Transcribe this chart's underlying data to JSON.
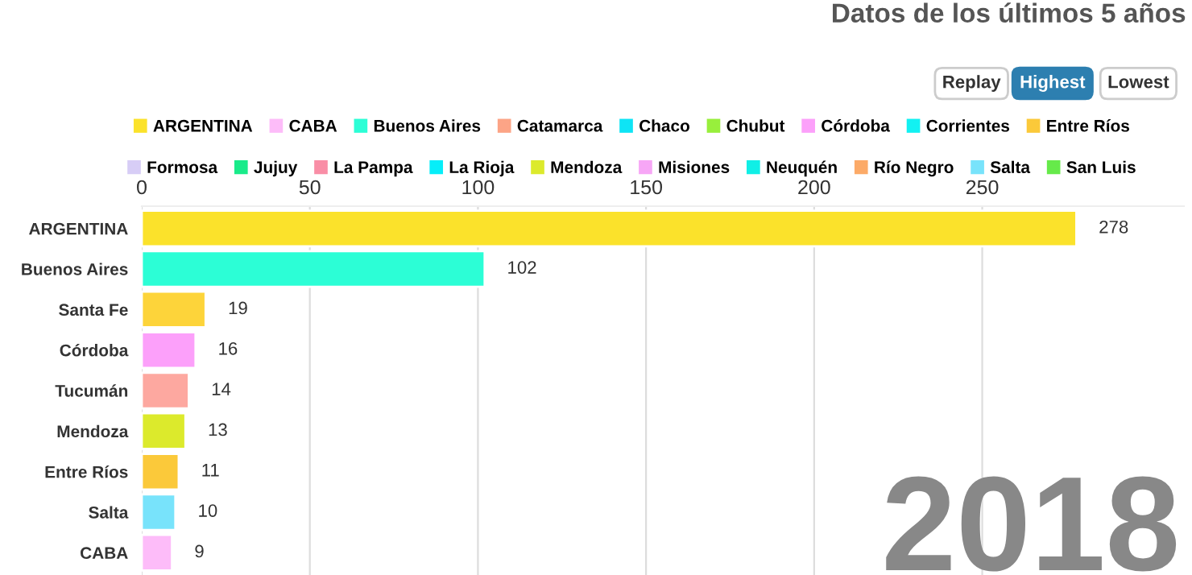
{
  "chart_data": {
    "type": "bar",
    "orientation": "horizontal",
    "title": "Datos de los últimos 5 años",
    "categories": [
      "ARGENTINA",
      "Buenos Aires",
      "Santa Fe",
      "Córdoba",
      "Tucumán",
      "Mendoza",
      "Entre Ríos",
      "Salta",
      "CABA"
    ],
    "series": [
      {
        "name": "ARGENTINA",
        "color": "#fbe22b",
        "values": [
          278,
          null,
          null,
          null,
          null,
          null,
          null,
          null,
          null
        ]
      },
      {
        "name": "CABA",
        "color": "#fdbcf9",
        "values": [
          null,
          null,
          null,
          null,
          null,
          null,
          null,
          null,
          9
        ]
      },
      {
        "name": "Buenos Aires",
        "color": "#2cfed6",
        "values": [
          null,
          102,
          null,
          null,
          null,
          null,
          null,
          null,
          null
        ]
      },
      {
        "name": "Catamarca",
        "color": "#fca486",
        "values": [
          null,
          null,
          null,
          null,
          null,
          null,
          null,
          null,
          null
        ]
      },
      {
        "name": "Chaco",
        "color": "#0ee4f5",
        "values": [
          null,
          null,
          null,
          null,
          null,
          null,
          null,
          null,
          null
        ]
      },
      {
        "name": "Chubut",
        "color": "#98ef3c",
        "values": [
          null,
          null,
          null,
          null,
          null,
          null,
          null,
          null,
          null
        ]
      },
      {
        "name": "Córdoba",
        "color": "#fca0fa",
        "values": [
          null,
          null,
          null,
          16,
          null,
          null,
          null,
          null,
          null
        ]
      },
      {
        "name": "Corrientes",
        "color": "#12f1f2",
        "values": [
          null,
          null,
          null,
          null,
          null,
          null,
          null,
          null,
          null
        ]
      },
      {
        "name": "Entre Ríos",
        "color": "#fbc93a",
        "values": [
          null,
          null,
          null,
          null,
          null,
          null,
          11,
          null,
          null
        ]
      },
      {
        "name": "Formosa",
        "color": "#d7cdf6",
        "values": [
          null,
          null,
          null,
          null,
          null,
          null,
          null,
          null,
          null
        ]
      },
      {
        "name": "Jujuy",
        "color": "#19eb8a",
        "values": [
          null,
          null,
          null,
          null,
          null,
          null,
          null,
          null,
          null
        ]
      },
      {
        "name": "La Pampa",
        "color": "#f98ea6",
        "values": [
          null,
          null,
          null,
          null,
          null,
          null,
          null,
          null,
          null
        ]
      },
      {
        "name": "La Rioja",
        "color": "#06eef9",
        "values": [
          null,
          null,
          null,
          null,
          null,
          null,
          null,
          null,
          null
        ]
      },
      {
        "name": "Mendoza",
        "color": "#dcea2c",
        "values": [
          null,
          null,
          null,
          null,
          null,
          13,
          null,
          null,
          null
        ]
      },
      {
        "name": "Misiones",
        "color": "#f7a6f6",
        "values": [
          null,
          null,
          null,
          null,
          null,
          null,
          null,
          null,
          null
        ]
      },
      {
        "name": "Neuquén",
        "color": "#10efe6",
        "values": [
          null,
          null,
          null,
          null,
          null,
          null,
          null,
          null,
          null
        ]
      },
      {
        "name": "Río Negro",
        "color": "#fcaa68",
        "values": [
          null,
          null,
          null,
          null,
          null,
          null,
          null,
          null,
          null
        ]
      },
      {
        "name": "Salta",
        "color": "#78e3fb",
        "values": [
          null,
          null,
          null,
          null,
          null,
          null,
          null,
          10,
          null
        ]
      },
      {
        "name": "San Luis",
        "color": "#66ea4a",
        "values": [
          null,
          null,
          null,
          null,
          null,
          null,
          null,
          null,
          null
        ]
      },
      {
        "color": "#fdd43a",
        "values": [
          null,
          null,
          19,
          null,
          null,
          null,
          null,
          null,
          null
        ]
      },
      {
        "color": "#fda8a0",
        "values": [
          null,
          null,
          null,
          null,
          14,
          null,
          null,
          null,
          null
        ]
      }
    ],
    "xlim": [
      0,
      310
    ],
    "xticks": [
      0,
      50,
      100,
      150,
      200,
      250
    ],
    "grid": "x",
    "legend": "top",
    "data_labels": true,
    "annotations": [
      "Replay",
      "Highest",
      "Lowest",
      "2018"
    ]
  }
}
